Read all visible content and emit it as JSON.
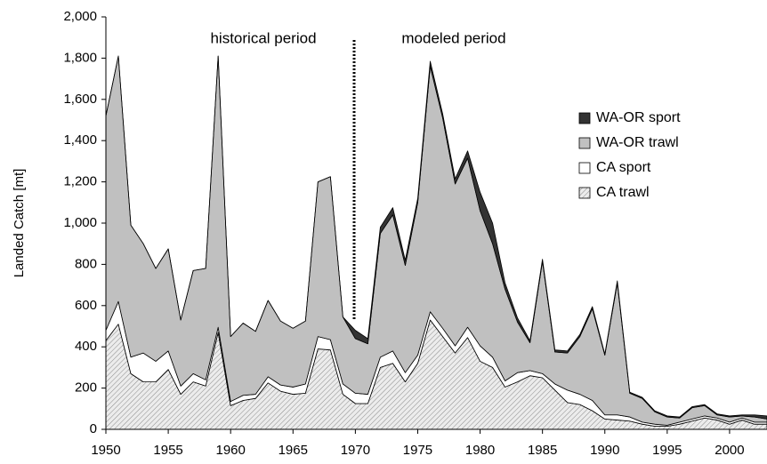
{
  "chart_data": {
    "type": "stacked-area",
    "y_label": "Landed Catch [mt]",
    "annotations": [
      "historical period",
      "modeled period"
    ],
    "x": [
      1950,
      1951,
      1952,
      1953,
      1954,
      1955,
      1956,
      1957,
      1958,
      1959,
      1960,
      1961,
      1962,
      1963,
      1964,
      1965,
      1966,
      1967,
      1968,
      1969,
      1970,
      1971,
      1972,
      1973,
      1974,
      1975,
      1976,
      1977,
      1978,
      1979,
      1980,
      1981,
      1982,
      1983,
      1984,
      1985,
      1986,
      1987,
      1988,
      1989,
      1990,
      1991,
      1992,
      1993,
      1994,
      1995,
      1996,
      1997,
      1998,
      1999,
      2000,
      2001,
      2002,
      2003
    ],
    "series": [
      {
        "name": "CA trawl",
        "color": "#d9d9d9",
        "pattern": "hatch",
        "values": [
          430,
          510,
          270,
          230,
          230,
          290,
          170,
          230,
          210,
          470,
          115,
          140,
          150,
          225,
          185,
          170,
          175,
          390,
          385,
          170,
          125,
          125,
          300,
          320,
          230,
          320,
          530,
          450,
          370,
          445,
          330,
          300,
          205,
          230,
          260,
          250,
          190,
          130,
          120,
          90,
          50,
          45,
          40,
          25,
          15,
          15,
          25,
          40,
          55,
          45,
          25,
          45,
          25,
          25
        ]
      },
      {
        "name": "CA sport",
        "color": "#ffffff",
        "values": [
          50,
          110,
          80,
          140,
          100,
          90,
          40,
          40,
          30,
          25,
          20,
          25,
          20,
          30,
          30,
          35,
          45,
          60,
          50,
          50,
          50,
          45,
          50,
          60,
          45,
          40,
          40,
          40,
          35,
          50,
          75,
          50,
          30,
          45,
          25,
          20,
          30,
          60,
          50,
          50,
          20,
          25,
          20,
          10,
          10,
          5,
          10,
          10,
          10,
          10,
          10,
          10,
          10,
          10
        ]
      },
      {
        "name": "WA-OR trawl",
        "color": "#c0c0c0",
        "values": [
          1040,
          1190,
          640,
          530,
          450,
          495,
          320,
          500,
          540,
          1315,
          315,
          350,
          305,
          370,
          310,
          285,
          305,
          750,
          790,
          325,
          265,
          245,
          600,
          660,
          520,
          740,
          1190,
          1020,
          785,
          820,
          655,
          550,
          445,
          245,
          135,
          545,
          155,
          180,
          280,
          445,
          290,
          640,
          115,
          115,
          60,
          40,
          20,
          55,
          50,
          15,
          25,
          10,
          25,
          15
        ]
      },
      {
        "name": "WA-OR sport",
        "color": "#333333",
        "values": [
          0,
          0,
          0,
          0,
          0,
          0,
          0,
          0,
          0,
          0,
          0,
          0,
          0,
          0,
          0,
          0,
          0,
          0,
          0,
          0,
          40,
          25,
          30,
          35,
          25,
          20,
          25,
          20,
          25,
          35,
          90,
          100,
          30,
          20,
          10,
          10,
          10,
          10,
          10,
          10,
          5,
          10,
          5,
          5,
          5,
          5,
          5,
          5,
          5,
          5,
          5,
          5,
          10,
          15
        ]
      }
    ],
    "xlim": [
      1950,
      2003
    ],
    "xticks": [
      1950,
      1955,
      1960,
      1965,
      1970,
      1975,
      1980,
      1985,
      1990,
      1995,
      2000
    ],
    "ylim": [
      0,
      2000
    ],
    "yticks": [
      0,
      200,
      400,
      600,
      800,
      {
        "value": 1000,
        "label": "1,000"
      },
      {
        "value": 1200,
        "label": "1,200"
      },
      {
        "value": 1400,
        "label": "1,400"
      },
      {
        "value": 1600,
        "label": "1,600"
      },
      {
        "value": 1800,
        "label": "1,800"
      },
      {
        "value": 2000,
        "label": "2,000"
      }
    ],
    "legend": "right"
  }
}
